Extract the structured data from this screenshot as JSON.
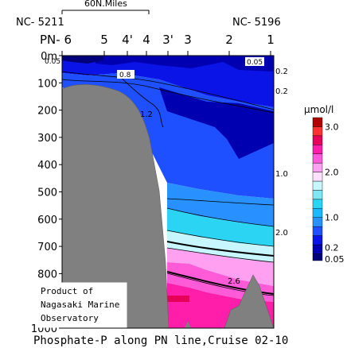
{
  "chart_data": {
    "type": "heatmap",
    "title": "Phosphate-P along PN line,Cruise 02-10",
    "scale_bar_label": "60N.Miles",
    "start_station_id": "NC- 5211",
    "end_station_id": "NC- 5196",
    "stations": [
      "PN- 6",
      "5",
      "4'",
      "4",
      "3'",
      "3",
      "2",
      "1"
    ],
    "y_axis": {
      "title": "",
      "range": [
        0,
        1000
      ],
      "ticks": [
        "0m",
        "100",
        "200",
        "300",
        "400",
        "500",
        "600",
        "700",
        "800",
        "900",
        "1000"
      ]
    },
    "colorbar": {
      "unit": "μmol/l",
      "levels": [
        0.05,
        0.2,
        0.4,
        0.6,
        0.8,
        1.0,
        1.2,
        1.4,
        1.6,
        1.8,
        2.0,
        2.2,
        2.4,
        2.6,
        2.8,
        3.0,
        3.2
      ],
      "colors": [
        "#00007a",
        "#0000b0",
        "#0a14e6",
        "#1e50ff",
        "#2890ff",
        "#1cb8ff",
        "#2ad4f2",
        "#80e6f2",
        "#c8f6ff",
        "#ffe0ff",
        "#ffa0f0",
        "#ff5ad8",
        "#ff1eaa",
        "#e6005a",
        "#ff3030",
        "#b00000"
      ],
      "tick_labels": [
        "3.0",
        "2.0",
        "1.0",
        "0.2",
        "0.05"
      ]
    },
    "contour_labels": [
      "0.05",
      "0.05",
      "0.8",
      "0.2",
      "0.2",
      "1.2",
      "1.0",
      "2.0",
      "2.6"
    ],
    "credit_lines": [
      "Product of",
      "Nagasaki Marine",
      "Observatory"
    ],
    "grid": false
  }
}
